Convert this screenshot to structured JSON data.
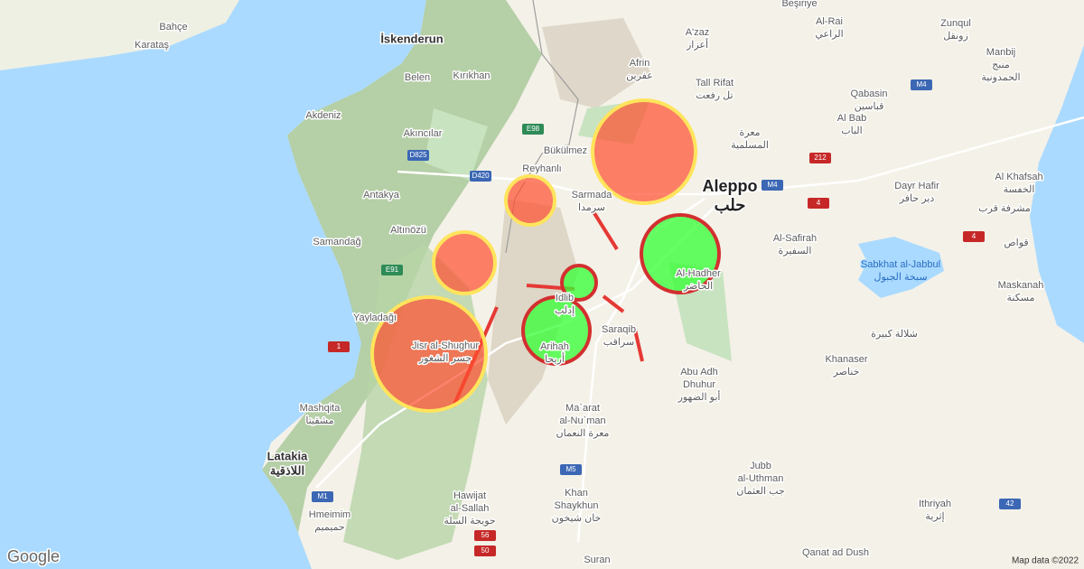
{
  "places": [
    {
      "lines": [
        "Bahçe"
      ]
    },
    {
      "lines": [
        "Karataş"
      ]
    },
    {
      "lines": [
        "İskenderun"
      ]
    },
    {
      "lines": [
        "Belen"
      ]
    },
    {
      "lines": [
        "Kırıkhan"
      ]
    },
    {
      "lines": [
        "Akdeniz"
      ]
    },
    {
      "lines": [
        "Akıncılar"
      ]
    },
    {
      "lines": [
        "Bükülmez"
      ]
    },
    {
      "lines": [
        "Reyhanlı"
      ]
    },
    {
      "lines": [
        "Antakya"
      ]
    },
    {
      "lines": [
        "Altınözü"
      ]
    },
    {
      "lines": [
        "Samandağ"
      ]
    },
    {
      "lines": [
        "Yayladağı"
      ]
    },
    {
      "lines": [
        "Mashqita",
        "مشقيتا"
      ]
    },
    {
      "lines": [
        "Latakia",
        "اللاذقية"
      ]
    },
    {
      "lines": [
        "Hmeimim",
        "حميميم"
      ]
    },
    {
      "lines": [
        "Hawijat",
        "al-Sallah",
        "حويجة السلة"
      ]
    },
    {
      "lines": [
        "Khan",
        "Shaykhun",
        "خان شيخون"
      ]
    },
    {
      "lines": [
        "Ma`arat",
        "al-Nu`man",
        "معرة النعمان"
      ]
    },
    {
      "lines": [
        "Jisr al-Shughur",
        "جسر الشغور"
      ]
    },
    {
      "lines": [
        "Arihah",
        "أريحا"
      ]
    },
    {
      "lines": [
        "Idlib",
        "إدلب"
      ]
    },
    {
      "lines": [
        "Saraqib",
        "سراقب"
      ]
    },
    {
      "lines": [
        "Abu Adh",
        "Dhuhur",
        "أبو الضهور"
      ]
    },
    {
      "lines": [
        "Sarmada",
        "سرمدا"
      ]
    },
    {
      "lines": [
        "Aleppo",
        "حلب"
      ]
    },
    {
      "lines": [
        "Afrin",
        "عفرين"
      ]
    },
    {
      "lines": [
        "A'zaz",
        "أعزاز"
      ]
    },
    {
      "lines": [
        "Tall Rifat",
        "تل رفعت"
      ]
    },
    {
      "lines": [
        "معرة",
        "المسلمية"
      ]
    },
    {
      "lines": [
        "Al-Rai",
        "الراعي"
      ]
    },
    {
      "lines": [
        "Beşiriye"
      ]
    },
    {
      "lines": [
        "Zunqul",
        "زونقل"
      ]
    },
    {
      "lines": [
        "Manbij",
        "منبج",
        "الحمدونية"
      ]
    },
    {
      "lines": [
        "Qabasin",
        "قباسين"
      ]
    },
    {
      "lines": [
        "Al Bab",
        "الباب"
      ]
    },
    {
      "lines": [
        "Al Khafsah",
        "الخفسة"
      ]
    },
    {
      "lines": [
        "Dayr Hafir",
        "دير حافر"
      ]
    },
    {
      "lines": [
        "مشرفة قرب"
      ]
    },
    {
      "lines": [
        "قواص"
      ]
    },
    {
      "lines": [
        "Al-Safirah",
        "السفيرة"
      ]
    },
    {
      "lines": [
        "Sabkhat al-Jabbul",
        "سبخة الجبول"
      ]
    },
    {
      "lines": [
        "Al-Hadher",
        "الحاضر"
      ]
    },
    {
      "lines": [
        "Maskanah",
        "مسكنة"
      ]
    },
    {
      "lines": [
        "شلالة كبيرة"
      ]
    },
    {
      "lines": [
        "Khanaser",
        "خناصر"
      ]
    },
    {
      "lines": [
        "Jubb",
        "al-Uthman",
        "جب العثمان"
      ]
    },
    {
      "lines": [
        "Ithriyah",
        "إثرية"
      ]
    },
    {
      "lines": [
        "Qanat ad Dush"
      ]
    },
    {
      "lines": [
        "Suran"
      ]
    }
  ],
  "roads": [
    "D825",
    "D420",
    "E98",
    "E91",
    "M4",
    "M4",
    "M5",
    "M1",
    "212",
    "4",
    "4",
    "42",
    "56",
    "50",
    "1"
  ],
  "brand": "Google",
  "credit": "Map data ©2022"
}
